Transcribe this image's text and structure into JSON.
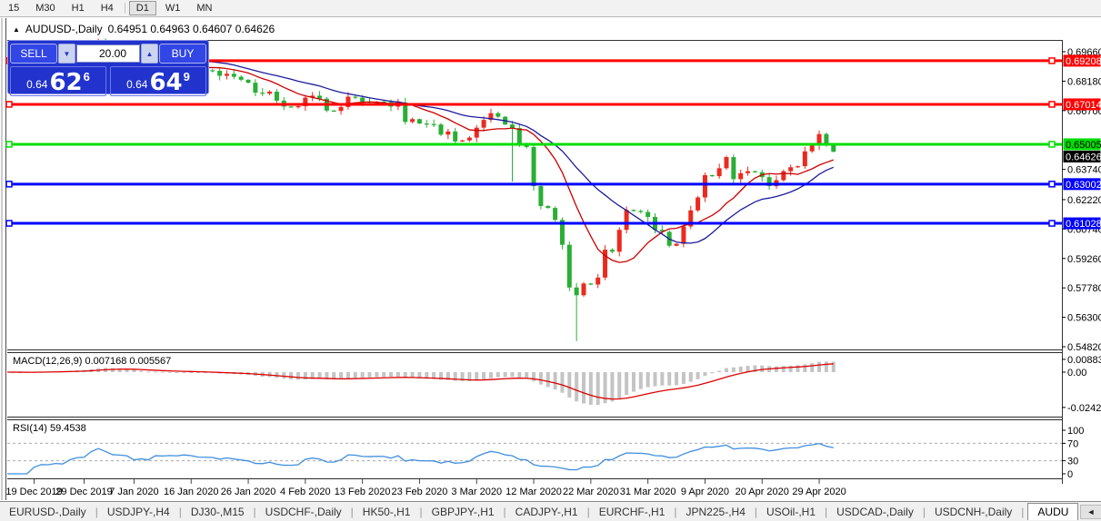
{
  "toolbar": {
    "timeframes": [
      {
        "label": "15",
        "active": false
      },
      {
        "label": "M30",
        "active": false
      },
      {
        "label": "H1",
        "active": false
      },
      {
        "label": "H4",
        "active": false
      },
      {
        "label": "D1",
        "active": true
      },
      {
        "label": "W1",
        "active": false
      },
      {
        "label": "MN",
        "active": false
      }
    ]
  },
  "chart_header": {
    "collapse_icon": "▲",
    "symbol_title": "AUDUSD-,Daily",
    "ohlc_text": "0.64951 0.64963 0.64607 0.64626"
  },
  "trade_panel": {
    "sell_label": "SELL",
    "buy_label": "BUY",
    "volume": "20.00",
    "down_arrow": "▼",
    "up_arrow": "▲",
    "sell_price": {
      "small": "0.64",
      "big": "62",
      "sup": "6"
    },
    "buy_price": {
      "small": "0.64",
      "big": "64",
      "sup": "9"
    }
  },
  "indicators": {
    "macd": {
      "label": "MACD(12,26,9) 0.007168 0.005567",
      "axis_ticks": [
        {
          "label": "0.008833",
          "value": 0.008833
        },
        {
          "label": "0.00",
          "value": 0
        },
        {
          "label": "-0.024281",
          "value": -0.024281
        }
      ]
    },
    "rsi": {
      "label": "RSI(14) 59.4538",
      "axis_ticks": [
        {
          "label": "100",
          "value": 100
        },
        {
          "label": "70",
          "value": 70
        },
        {
          "label": "30",
          "value": 30
        },
        {
          "label": "0",
          "value": 0
        }
      ],
      "dashed_levels": [
        70,
        30
      ]
    }
  },
  "tabs": {
    "items": [
      "EURUSD-,Daily",
      "USDJPY-,H4",
      "DJ30-,M15",
      "USDCHF-,Daily",
      "HK50-,H1",
      "GBPJPY-,H1",
      "CADJPY-,H1",
      "EURCHF-,H1",
      "JPN225-,H4",
      "USOil-,H1",
      "USDCAD-,Daily",
      "USDCNH-,Daily"
    ],
    "active": "AUDU",
    "arrow_left": "◄",
    "arrow_right": "►"
  },
  "colors": {
    "candle_up": "#ea2a1f",
    "candle_down": "#2aae35",
    "ma_fast": "#cc0000",
    "ma_slow": "#1c1c9e",
    "level_red": "#ff0000",
    "level_green": "#00dd00",
    "level_blue": "#0000ff",
    "macd_hist": "#c4c4c4",
    "macd_signal": "#dd0000",
    "rsi_line": "#3e8ede",
    "current_badge_bg": "#000000",
    "panel_blue": "#2133cc"
  },
  "chart_data": {
    "type": "candlestick",
    "symbol": "AUDUSD",
    "timeframe": "Daily",
    "current_bar": {
      "open": 0.64951,
      "high": 0.64963,
      "low": 0.64607,
      "close": 0.64626
    },
    "y_axis_ticks": [
      {
        "label": "0.69660",
        "price": 0.6966
      },
      {
        "label": "0.68180",
        "price": 0.6818
      },
      {
        "label": "0.66700",
        "price": 0.667
      },
      {
        "label": "0.63740",
        "price": 0.6374
      },
      {
        "label": "0.62220",
        "price": 0.6222
      },
      {
        "label": "0.60740",
        "price": 0.6074
      },
      {
        "label": "0.59260",
        "price": 0.5926
      },
      {
        "label": "0.57780",
        "price": 0.5778
      },
      {
        "label": "0.56300",
        "price": 0.563
      },
      {
        "label": "0.54820",
        "price": 0.5482
      }
    ],
    "horizontal_levels": [
      {
        "price": 0.69208,
        "label": "0.69208",
        "color": "#ff0000",
        "text_color": "#ffffff"
      },
      {
        "price": 0.67014,
        "label": "0.67014",
        "color": "#ff0000",
        "text_color": "#ffffff"
      },
      {
        "price": 0.65005,
        "label": "0.65005",
        "color": "#00dd00",
        "text_color": "#000000"
      },
      {
        "price": 0.63002,
        "label": "0.63002",
        "color": "#0000ff",
        "text_color": "#ffffff"
      },
      {
        "price": 0.61028,
        "label": "0.61028",
        "color": "#0000ff",
        "text_color": "#ffffff"
      }
    ],
    "current_price": {
      "price": 0.64626,
      "label": "0.64626"
    },
    "date_labels": [
      {
        "label": "19 Dec 2019",
        "bar_index": 3
      },
      {
        "label": "29 Dec 2019",
        "bar_index": 10
      },
      {
        "label": "7 Jan 2020",
        "bar_index": 17
      },
      {
        "label": "16 Jan 2020",
        "bar_index": 25
      },
      {
        "label": "26 Jan 2020",
        "bar_index": 33
      },
      {
        "label": "4 Feb 2020",
        "bar_index": 41
      },
      {
        "label": "13 Feb 2020",
        "bar_index": 49
      },
      {
        "label": "23 Feb 2020",
        "bar_index": 57
      },
      {
        "label": "3 Mar 2020",
        "bar_index": 65
      },
      {
        "label": "12 Mar 2020",
        "bar_index": 73
      },
      {
        "label": "22 Mar 2020",
        "bar_index": 81
      },
      {
        "label": "31 Mar 2020",
        "bar_index": 89
      },
      {
        "label": "9 Apr 2020",
        "bar_index": 97
      },
      {
        "label": "20 Apr 2020",
        "bar_index": 105
      },
      {
        "label": "29 Apr 2020",
        "bar_index": 113
      }
    ],
    "closes": [
      0.687,
      0.6855,
      0.6852,
      0.6885,
      0.69,
      0.6898,
      0.6905,
      0.6895,
      0.692,
      0.6935,
      0.6938,
      0.6985,
      0.702,
      0.699,
      0.695,
      0.6945,
      0.6935,
      0.6865,
      0.6875,
      0.6855,
      0.69,
      0.6895,
      0.69,
      0.6895,
      0.6905,
      0.6895,
      0.6875,
      0.6873,
      0.687,
      0.6845,
      0.6855,
      0.684,
      0.6825,
      0.681,
      0.676,
      0.6755,
      0.6765,
      0.672,
      0.669,
      0.6688,
      0.6692,
      0.6735,
      0.6745,
      0.673,
      0.667,
      0.6668,
      0.6688,
      0.674,
      0.6735,
      0.6715,
      0.6712,
      0.6715,
      0.6713,
      0.669,
      0.6711,
      0.6613,
      0.6627,
      0.6605,
      0.6602,
      0.66,
      0.6549,
      0.6565,
      0.6515,
      0.652,
      0.6534,
      0.6584,
      0.6623,
      0.6657,
      0.6639,
      0.66,
      0.6582,
      0.65,
      0.6487,
      0.629,
      0.619,
      0.618,
      0.612,
      0.5995,
      0.578,
      0.5741,
      0.58,
      0.5795,
      0.583,
      0.597,
      0.596,
      0.607,
      0.617,
      0.6165,
      0.616,
      0.6135,
      0.607,
      0.606,
      0.599,
      0.6,
      0.6087,
      0.6168,
      0.6233,
      0.6345,
      0.634,
      0.638,
      0.6436,
      0.6325,
      0.6355,
      0.6365,
      0.636,
      0.6335,
      0.629,
      0.632,
      0.6365,
      0.6385,
      0.639,
      0.6465,
      0.6495,
      0.6552,
      0.6495,
      0.64626
    ],
    "sunday_indices": [
      5,
      10,
      15,
      21,
      27,
      33,
      39,
      45,
      51,
      57,
      63,
      69,
      75,
      81,
      87,
      93,
      98,
      104,
      110
    ],
    "special_bars": {
      "12": {
        "h": 0.7032
      },
      "70": {
        "l": 0.6313
      },
      "79": {
        "l": 0.551
      },
      "113": {
        "h": 0.657
      },
      "114": {
        "o": 0.6552,
        "h": 0.656,
        "l": 0.6488,
        "c": 0.6495
      },
      "115": {
        "o": 0.64951,
        "h": 0.64963,
        "l": 0.64607,
        "c": 0.64626
      }
    },
    "moving_averages": [
      {
        "period": 10,
        "color": "#cc0000"
      },
      {
        "period": 20,
        "color": "#1c1c9e"
      }
    ],
    "macd_settings": {
      "fast": 12,
      "slow": 26,
      "signal": 9,
      "current_macd": 0.007168,
      "current_signal": 0.005567
    },
    "rsi_settings": {
      "period": 14,
      "current": 59.4538
    }
  }
}
